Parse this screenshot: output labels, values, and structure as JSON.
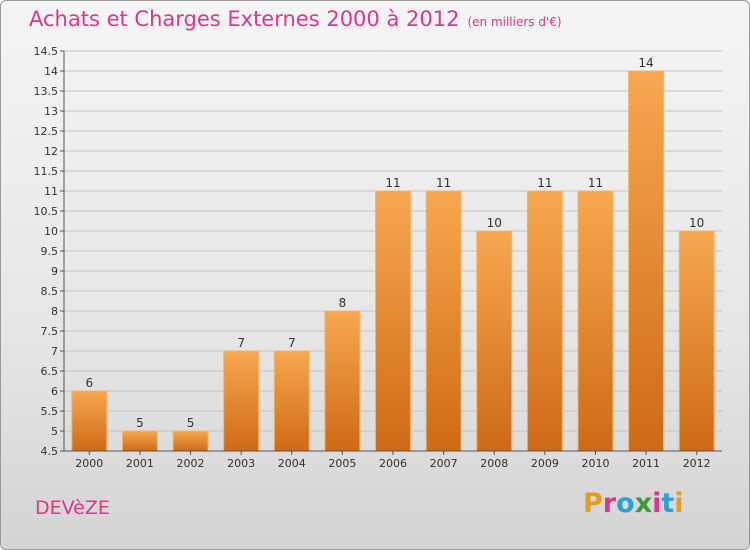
{
  "header": {
    "title": "Achats et Charges Externes 2000 à 2012",
    "subtitle": "(en milliers d'€)"
  },
  "footer": {
    "commune": "DEVèZE",
    "brand": "Proxiti",
    "brand_colors": [
      "#e69a1e",
      "#e0358a",
      "#2aa0d8",
      "#3a9b3a",
      "#e0358a",
      "#2aa0d8",
      "#e69a1e"
    ]
  },
  "chart_data": {
    "type": "bar",
    "categories": [
      "2000",
      "2001",
      "2002",
      "2003",
      "2004",
      "2005",
      "2006",
      "2007",
      "2008",
      "2009",
      "2010",
      "2011",
      "2012"
    ],
    "values": [
      6,
      5,
      5,
      7,
      7,
      8,
      11,
      11,
      10,
      11,
      11,
      14,
      10
    ],
    "value_labels": [
      "6",
      "5",
      "5",
      "7",
      "7",
      "8",
      "11",
      "11",
      "10",
      "11",
      "11",
      "14",
      "10"
    ],
    "yticks": [
      "4.5",
      "5",
      "5.5",
      "6",
      "6.5",
      "7",
      "7.5",
      "8",
      "8.5",
      "9",
      "9.5",
      "10",
      "10.5",
      "11",
      "11.5",
      "12",
      "12.5",
      "13",
      "13.5",
      "14",
      "14.5"
    ],
    "ylim": [
      4.5,
      14.5
    ],
    "grid": true,
    "bar_color": "#f0912e",
    "bar_color_light": "#f7a850",
    "bar_color_dark": "#cf6a14"
  }
}
